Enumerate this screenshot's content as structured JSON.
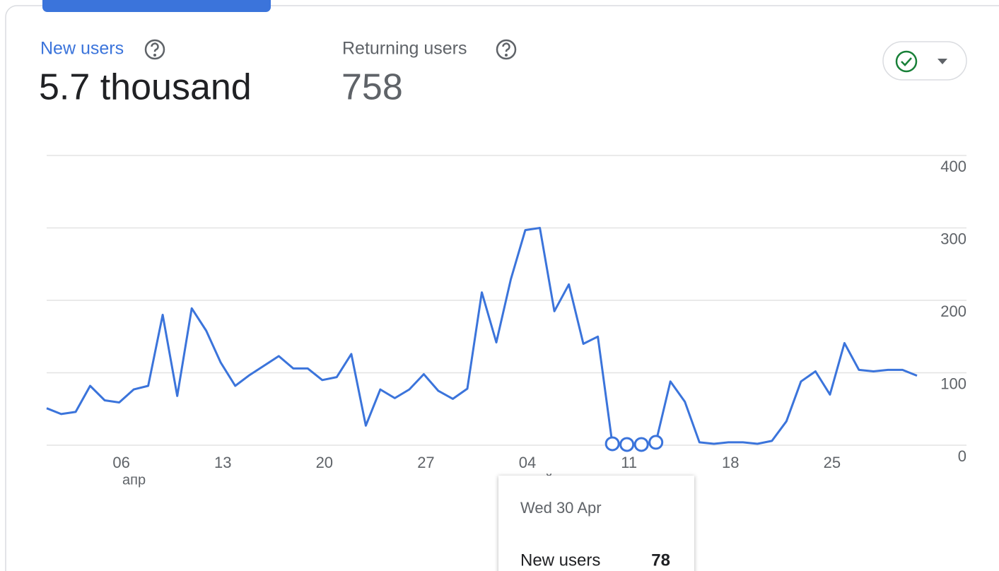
{
  "header": {
    "metric_1": {
      "label": "New users",
      "value": "5.7 thousand"
    },
    "metric_2": {
      "label": "Returning users",
      "value": "758"
    }
  },
  "tooltip": {
    "date": "Wed 30 Apr",
    "index": 29
  },
  "chart_data": {
    "type": "line",
    "categories": [
      null,
      null,
      null,
      null,
      null,
      "06",
      null,
      null,
      null,
      null,
      null,
      null,
      "13",
      null,
      null,
      null,
      null,
      null,
      null,
      "20",
      null,
      null,
      null,
      null,
      null,
      null,
      "27",
      null,
      null,
      null,
      null,
      null,
      null,
      "04",
      null,
      null,
      null,
      null,
      null,
      null,
      "11",
      null,
      null,
      null,
      null,
      null,
      null,
      "18",
      null,
      null,
      null,
      null,
      null,
      null,
      "25",
      null,
      null,
      null,
      null,
      null,
      null
    ],
    "category_months": [
      null,
      null,
      null,
      null,
      null,
      "апр",
      null,
      null,
      null,
      null,
      null,
      null,
      null,
      null,
      null,
      null,
      null,
      null,
      null,
      null,
      null,
      null,
      null,
      null,
      null,
      null,
      null,
      null,
      null,
      null,
      null,
      null,
      null,
      "май",
      null,
      null,
      null,
      null,
      null,
      null,
      null,
      null,
      null,
      null,
      null,
      null,
      null,
      null,
      null,
      null,
      null,
      null,
      null,
      null,
      null,
      null,
      null,
      null,
      null,
      null,
      null
    ],
    "series": [
      {
        "name": "New users",
        "color": "#3b74db",
        "values": [
          51,
          43,
          46,
          82,
          62,
          59,
          77,
          82,
          180,
          68,
          189,
          158,
          114,
          82,
          97,
          110,
          123,
          106,
          106,
          90,
          94,
          126,
          27,
          77,
          65,
          77,
          98,
          75,
          64,
          78,
          211,
          142,
          229,
          297,
          300,
          185,
          222,
          140,
          150,
          2,
          1,
          1,
          4,
          88,
          60,
          4,
          2,
          4,
          4,
          2,
          6,
          33,
          88,
          102,
          70,
          141,
          104,
          102,
          104,
          104,
          96
        ]
      }
    ],
    "highlighted_points": [
      39,
      40,
      41,
      42
    ],
    "ylim": [
      0,
      400
    ],
    "yticks": [
      0,
      100,
      200,
      300,
      400
    ],
    "grid": true
  }
}
